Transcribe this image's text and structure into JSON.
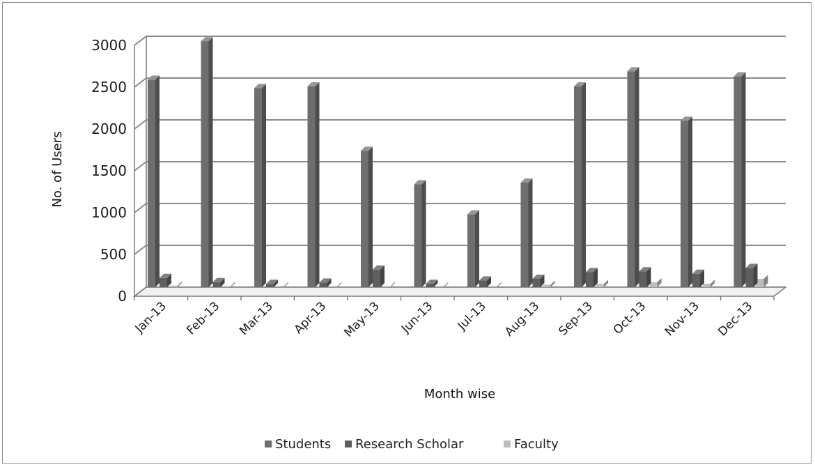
{
  "chart_data": {
    "type": "bar",
    "title": "",
    "xlabel": "Month wise",
    "ylabel": "No. of Users",
    "ylim": [
      0,
      3000
    ],
    "yticks": [
      0,
      500,
      1000,
      1500,
      2000,
      2500,
      3000
    ],
    "grid": true,
    "legend": "bottom",
    "categories": [
      "Jan-13",
      "Feb-13",
      "Mar-13",
      "Apr-13",
      "May-13",
      "Jun-13",
      "Jul-13",
      "Aug-13",
      "Sep-13",
      "Oct-13",
      "Nov-13",
      "Dec-13"
    ],
    "series": [
      {
        "name": "Students",
        "color": "#6e6e6e",
        "values": [
          2480,
          2940,
          2380,
          2400,
          1630,
          1230,
          870,
          1250,
          2400,
          2580,
          1990,
          2520
        ]
      },
      {
        "name": "Research Scholar",
        "color": "#5f5f5f",
        "values": [
          110,
          60,
          40,
          55,
          210,
          40,
          80,
          100,
          180,
          190,
          160,
          230
        ]
      },
      {
        "name": "Faculty",
        "color": "#bdbdbd",
        "values": [
          20,
          15,
          15,
          15,
          15,
          15,
          15,
          30,
          40,
          60,
          40,
          100
        ]
      }
    ]
  }
}
